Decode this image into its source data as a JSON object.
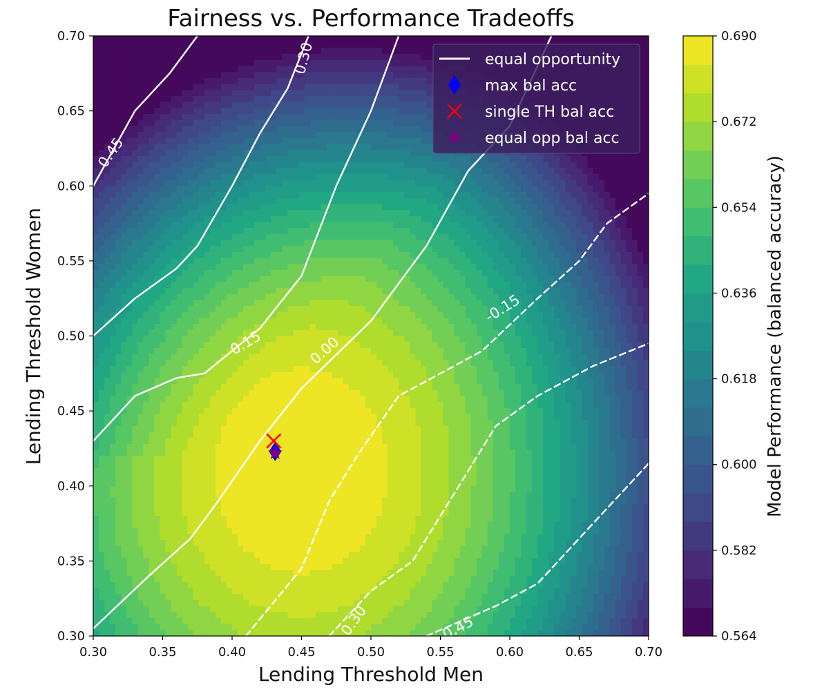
{
  "chart_data": {
    "type": "heatmap",
    "title": "Fairness vs. Performance Tradeoffs",
    "xlabel": "Lending Threshold Men",
    "ylabel": "Lending Threshold Women",
    "xlim": [
      0.3,
      0.7
    ],
    "ylim": [
      0.3,
      0.7
    ],
    "xticks": [
      "0.30",
      "0.35",
      "0.40",
      "0.45",
      "0.50",
      "0.55",
      "0.60",
      "0.65",
      "0.70"
    ],
    "yticks": [
      "0.30",
      "0.35",
      "0.40",
      "0.45",
      "0.50",
      "0.55",
      "0.60",
      "0.65",
      "0.70"
    ],
    "colorbar": {
      "label": "Model Performance (balanced accuracy)",
      "range": [
        0.564,
        0.69
      ],
      "ticks": [
        "0.564",
        "0.582",
        "0.600",
        "0.618",
        "0.636",
        "0.654",
        "0.672",
        "0.690"
      ],
      "levels": 21,
      "colormap": [
        "#440154",
        "#482475",
        "#414487",
        "#355f8d",
        "#2a788e",
        "#21918c",
        "#22a884",
        "#44bf70",
        "#7ad151",
        "#bddf26",
        "#fde725"
      ]
    },
    "surface_peak": {
      "x": 0.45,
      "y": 0.41,
      "value": 0.69
    },
    "contours": [
      {
        "label": "0.45",
        "style": "solid",
        "points": [
          [
            0.3,
            0.6
          ],
          [
            0.33,
            0.65
          ],
          [
            0.355,
            0.675
          ],
          [
            0.375,
            0.7
          ]
        ]
      },
      {
        "label": "0.30",
        "style": "solid",
        "points": [
          [
            0.3,
            0.5
          ],
          [
            0.33,
            0.525
          ],
          [
            0.36,
            0.545
          ],
          [
            0.375,
            0.56
          ],
          [
            0.4,
            0.6
          ],
          [
            0.42,
            0.635
          ],
          [
            0.44,
            0.665
          ],
          [
            0.455,
            0.7
          ]
        ]
      },
      {
        "label": "0.15",
        "style": "solid",
        "points": [
          [
            0.3,
            0.43
          ],
          [
            0.33,
            0.46
          ],
          [
            0.36,
            0.472
          ],
          [
            0.38,
            0.475
          ],
          [
            0.4,
            0.49
          ],
          [
            0.42,
            0.505
          ],
          [
            0.45,
            0.54
          ],
          [
            0.475,
            0.6
          ],
          [
            0.5,
            0.65
          ],
          [
            0.52,
            0.7
          ]
        ]
      },
      {
        "label": "0.00",
        "style": "solid",
        "points": [
          [
            0.3,
            0.305
          ],
          [
            0.34,
            0.34
          ],
          [
            0.37,
            0.365
          ],
          [
            0.39,
            0.39
          ],
          [
            0.42,
            0.43
          ],
          [
            0.45,
            0.465
          ],
          [
            0.5,
            0.51
          ],
          [
            0.54,
            0.56
          ],
          [
            0.57,
            0.61
          ],
          [
            0.6,
            0.64
          ],
          [
            0.63,
            0.7
          ]
        ]
      },
      {
        "label": "-0.15",
        "style": "dashed",
        "points": [
          [
            0.41,
            0.3
          ],
          [
            0.45,
            0.345
          ],
          [
            0.47,
            0.39
          ],
          [
            0.49,
            0.42
          ],
          [
            0.52,
            0.46
          ],
          [
            0.58,
            0.49
          ],
          [
            0.62,
            0.525
          ],
          [
            0.65,
            0.55
          ],
          [
            0.67,
            0.575
          ],
          [
            0.7,
            0.595
          ]
        ]
      },
      {
        "label": "0.30",
        "style": "dashed",
        "points": [
          [
            0.47,
            0.3
          ],
          [
            0.5,
            0.33
          ],
          [
            0.53,
            0.35
          ],
          [
            0.55,
            0.38
          ],
          [
            0.57,
            0.41
          ],
          [
            0.59,
            0.44
          ],
          [
            0.62,
            0.46
          ],
          [
            0.66,
            0.48
          ],
          [
            0.7,
            0.495
          ]
        ]
      },
      {
        "label": "0.45",
        "style": "dashed",
        "points": [
          [
            0.54,
            0.3
          ],
          [
            0.59,
            0.32
          ],
          [
            0.62,
            0.335
          ],
          [
            0.645,
            0.36
          ],
          [
            0.67,
            0.385
          ],
          [
            0.7,
            0.415
          ]
        ]
      }
    ],
    "contour_labels": [
      {
        "text": "0.45",
        "x": 0.313,
        "y": 0.622,
        "angle": -55
      },
      {
        "text": "0.30",
        "x": 0.452,
        "y": 0.685,
        "angle": -75
      },
      {
        "text": "0.15",
        "x": 0.41,
        "y": 0.495,
        "angle": -30
      },
      {
        "text": "0.00",
        "x": 0.467,
        "y": 0.49,
        "angle": -42
      },
      {
        "text": "-0.15",
        "x": 0.595,
        "y": 0.518,
        "angle": -32
      },
      {
        "text": "0.30",
        "x": 0.488,
        "y": 0.31,
        "angle": -55
      },
      {
        "text": "0.45",
        "x": 0.563,
        "y": 0.305,
        "angle": -28
      }
    ],
    "markers": [
      {
        "name": "max bal acc",
        "x": 0.431,
        "y": 0.423,
        "symbol": "diamond",
        "color": "#0000ff"
      },
      {
        "name": "single TH bal acc",
        "x": 0.43,
        "y": 0.43,
        "symbol": "x",
        "color": "#ff0000"
      },
      {
        "name": "equal opp bal acc",
        "x": 0.431,
        "y": 0.422,
        "symbol": "star",
        "color": "#800080"
      }
    ],
    "legend": {
      "placement": "top-right",
      "entries": [
        {
          "label": "equal opportunity",
          "symbol": "line",
          "color": "#ffffff"
        },
        {
          "label": "max bal acc",
          "symbol": "diamond",
          "color": "#0000ff"
        },
        {
          "label": "single TH bal acc",
          "symbol": "x",
          "color": "#ff0000"
        },
        {
          "label": "equal opp bal acc",
          "symbol": "star",
          "color": "#800080"
        }
      ]
    }
  }
}
